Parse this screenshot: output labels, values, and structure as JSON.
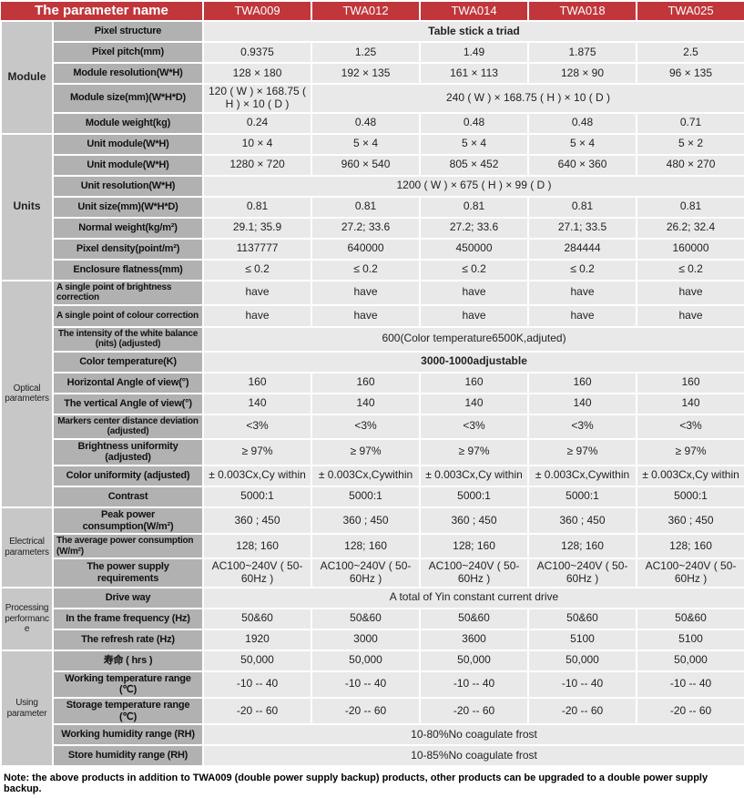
{
  "colors": {
    "header_red": "#c0363a",
    "header_top_edge": "#7e1e21",
    "header_separator": "#451113",
    "group_column_gray": "#c7c7c7",
    "param_column_gray": "#b1b1b1",
    "data_cell_gray": "#e9e9e9"
  },
  "header": {
    "param_col": "The parameter name",
    "models": [
      "TWA009",
      "TWA012",
      "TWA014",
      "TWA018",
      "TWA025"
    ]
  },
  "groups": [
    {
      "label": "Module",
      "rows": [
        {
          "label": "Pixel structure",
          "span": "Table stick a triad",
          "span_bold": true
        },
        {
          "label": "Pixel pitch(mm)",
          "values": [
            "0.9375",
            "1.25",
            "1.49",
            "1.875",
            "2.5"
          ]
        },
        {
          "label": "Module resolution(W*H)",
          "values": [
            "128 × 180",
            "192 × 135",
            "161 × 113",
            "128 × 90",
            "96 × 135"
          ]
        },
        {
          "label": "Module size(mm)(W*H*D)",
          "first": "120 ( W ) × 168.75 ( H ) × 10 ( D )",
          "rest_span": "240 ( W ) × 168.75 ( H ) × 10 ( D )"
        },
        {
          "label": "Module weight(kg)",
          "values": [
            "0.24",
            "0.48",
            "0.48",
            "0.48",
            "0.71"
          ]
        }
      ]
    },
    {
      "label": "Units",
      "rows": [
        {
          "label": "Unit module(W*H)",
          "values": [
            "10 × 4",
            "5 × 4",
            "5 × 4",
            "5 × 4",
            "5 × 2"
          ]
        },
        {
          "label": "Unit module(W*H)",
          "values": [
            "1280 × 720",
            "960 × 540",
            "805 × 452",
            "640 × 360",
            "480 × 270"
          ]
        },
        {
          "label": "Unit resolution(W*H)",
          "span": "1200 ( W ) × 675 ( H ) × 99 ( D )",
          "span_bold": false
        },
        {
          "label": "Unit size(mm)(W*H*D)",
          "values": [
            "0.81",
            "0.81",
            "0.81",
            "0.81",
            "0.81"
          ]
        },
        {
          "label": "Normal weight(kg/m²)",
          "values": [
            "29.1; 35.9",
            "27.2; 33.6",
            "27.2; 33.6",
            "27.1; 33.5",
            "26.2; 32.4"
          ]
        },
        {
          "label": "Pixel density(point/m²)",
          "values": [
            "1137777",
            "640000",
            "450000",
            "284444",
            "160000"
          ]
        },
        {
          "label": "Enclosure flatness(mm)",
          "values": [
            "≤ 0.2",
            "≤ 0.2",
            "≤ 0.2",
            "≤ 0.2",
            "≤ 0.2"
          ]
        }
      ]
    },
    {
      "label": "Optical parameters",
      "rows": [
        {
          "label": "A single point of brightness correction",
          "small_label": true,
          "label_align": "left",
          "values": [
            "have",
            "have",
            "have",
            "have",
            "have"
          ]
        },
        {
          "label": "A single point of colour correction",
          "small_label": true,
          "label_align": "left",
          "values": [
            "have",
            "have",
            "have",
            "have",
            "have"
          ]
        },
        {
          "label": "The intensity of the white balance (nits) (adjusted)",
          "small_label": true,
          "span": "600(Color temperature6500K,adjuted)",
          "span_bold": false
        },
        {
          "label": "Color temperature(K)",
          "span": "3000-1000adjustable",
          "span_bold": true
        },
        {
          "label": "Horizontal Angle of view(°)",
          "values": [
            "160",
            "160",
            "160",
            "160",
            "160"
          ]
        },
        {
          "label": "The vertical Angle of view(°)",
          "values": [
            "140",
            "140",
            "140",
            "140",
            "140"
          ]
        },
        {
          "label": "Markers center distance deviation (adjusted)",
          "small_label": true,
          "values": [
            "<3%",
            "<3%",
            "<3%",
            "<3%",
            "<3%"
          ]
        },
        {
          "label": "Brightness uniformity (adjusted)",
          "values": [
            "≥ 97%",
            "≥ 97%",
            "≥ 97%",
            "≥ 97%",
            "≥ 97%"
          ]
        },
        {
          "label": "Color uniformity (adjusted)",
          "values": [
            "± 0.003Cx,Cy within",
            "± 0.003Cx,Cywithin",
            "± 0.003Cx,Cy within",
            "± 0.003Cx,Cywithin",
            "± 0.003Cx,Cy within"
          ]
        },
        {
          "label": "Contrast",
          "values": [
            "5000:1",
            "5000:1",
            "5000:1",
            "5000:1",
            "5000:1"
          ]
        }
      ]
    },
    {
      "label": "Electrical parameters",
      "rows": [
        {
          "label": "Peak power consumption(W/m²)",
          "values": [
            "360 ; 450",
            "360 ; 450",
            "360 ; 450",
            "360 ; 450",
            "360 ; 450"
          ]
        },
        {
          "label": "The average power consumption (W/m²)",
          "small_label": true,
          "label_align": "left",
          "values": [
            "128; 160",
            "128; 160",
            "128; 160",
            "128; 160",
            "128; 160"
          ]
        },
        {
          "label": "The power supply requirements",
          "values": [
            "AC100~240V ( 50-60Hz )",
            "AC100~240V ( 50-60Hz )",
            "AC100~240V ( 50-60Hz )",
            "AC100~240V ( 50-60Hz )",
            "AC100~240V ( 50-60Hz )"
          ]
        }
      ]
    },
    {
      "label": "Processing performance",
      "rows": [
        {
          "label": "Drive way",
          "span": "A total of Yin constant current drive",
          "span_bold": false
        },
        {
          "label": "In the frame frequency (Hz)",
          "values": [
            "50&60",
            "50&60",
            "50&60",
            "50&60",
            "50&60"
          ]
        },
        {
          "label": "The refresh rate (Hz)",
          "values": [
            "1920",
            "3000",
            "3600",
            "5100",
            "5100"
          ]
        }
      ]
    },
    {
      "label": "Using parameter",
      "rows": [
        {
          "label": "寿命 ( hrs )",
          "values": [
            "50,000",
            "50,000",
            "50,000",
            "50,000",
            "50,000"
          ]
        },
        {
          "label": "Working temperature range (℃)",
          "values": [
            "-10 -- 40",
            "-10 -- 40",
            "-10 -- 40",
            "-10 -- 40",
            "-10 -- 40"
          ]
        },
        {
          "label": "Storage temperature range (℃)",
          "values": [
            "-20 -- 60",
            "-20 -- 60",
            "-20 -- 60",
            "-20 -- 60",
            "-20 -- 60"
          ]
        },
        {
          "label": "Working humidity range (RH)",
          "span": "10-80%No coagulate frost",
          "span_bold": false
        },
        {
          "label": "Store humidity range (RH)",
          "span": "10-85%No coagulate frost",
          "span_bold": false
        }
      ]
    }
  ],
  "note": "Note: the above products in addition to TWA009 (double power supply backup) products, other products can be upgraded to a double power supply backup."
}
